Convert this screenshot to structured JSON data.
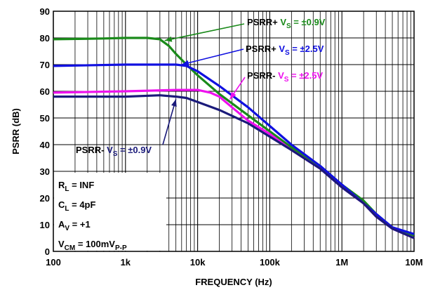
{
  "chart_data": {
    "type": "line",
    "xlabel": "FREQUENCY (Hz)",
    "ylabel": "PSRR (dB)",
    "x_scale": "log",
    "xlim": [
      100,
      10000000
    ],
    "ylim": [
      0,
      90
    ],
    "grid": true,
    "x_ticks": [
      {
        "value": 100,
        "label": "100"
      },
      {
        "value": 1000,
        "label": "1k"
      },
      {
        "value": 10000,
        "label": "10k"
      },
      {
        "value": 100000,
        "label": "100k"
      },
      {
        "value": 1000000,
        "label": "1M"
      },
      {
        "value": 10000000,
        "label": "10M"
      }
    ],
    "y_ticks": [
      0,
      10,
      20,
      30,
      40,
      50,
      60,
      70,
      80,
      90
    ],
    "series": [
      {
        "name": "PSRR+ VS = ±0.9V",
        "label": {
          "main": "PSRR+",
          "v": "V",
          "sub": "S",
          "value": "= ±0.9V"
        },
        "color": "#1a8a1a",
        "arrow_target": [
          3500,
          79
        ],
        "points": [
          [
            100,
            79.5
          ],
          [
            500,
            79.8
          ],
          [
            1000,
            80
          ],
          [
            2000,
            80
          ],
          [
            3000,
            79.5
          ],
          [
            4000,
            77
          ],
          [
            5000,
            74
          ],
          [
            7000,
            70
          ],
          [
            10000,
            66
          ],
          [
            20000,
            59
          ],
          [
            50000,
            51
          ],
          [
            100000,
            45
          ],
          [
            200000,
            39
          ],
          [
            500000,
            32
          ],
          [
            1000000,
            25
          ],
          [
            2000000,
            19
          ],
          [
            3000000,
            14
          ],
          [
            5000000,
            9
          ],
          [
            10000000,
            6
          ]
        ]
      },
      {
        "name": "PSRR+ VS = ±2.5V",
        "label": {
          "main": "PSRR+",
          "v": "V",
          "sub": "S",
          "value": "= ±2.5V"
        },
        "color": "#1010e0",
        "arrow_target": [
          6000,
          70
        ],
        "points": [
          [
            100,
            69.5
          ],
          [
            1000,
            70
          ],
          [
            3000,
            70
          ],
          [
            5000,
            70
          ],
          [
            7000,
            69.5
          ],
          [
            10000,
            67.5
          ],
          [
            20000,
            62
          ],
          [
            50000,
            54
          ],
          [
            100000,
            47
          ],
          [
            200000,
            40
          ],
          [
            500000,
            32
          ],
          [
            1000000,
            25
          ],
          [
            2000000,
            18
          ],
          [
            3000000,
            14
          ],
          [
            5000000,
            9
          ],
          [
            10000000,
            6.5
          ]
        ]
      },
      {
        "name": "PSRR- VS = ±2.5V",
        "label": {
          "main": "PSRR-",
          "v": "V",
          "sub": "S",
          "value": "= ±2.5V"
        },
        "color": "#ee10ee",
        "arrow_target": [
          28000,
          57
        ],
        "points": [
          [
            100,
            59.5
          ],
          [
            1000,
            60
          ],
          [
            5000,
            60.5
          ],
          [
            10000,
            60.5
          ],
          [
            15000,
            59.5
          ],
          [
            20000,
            58
          ],
          [
            30000,
            54
          ],
          [
            50000,
            49
          ],
          [
            100000,
            44
          ],
          [
            200000,
            38
          ],
          [
            500000,
            31
          ],
          [
            1000000,
            24
          ],
          [
            2000000,
            18
          ],
          [
            3000000,
            13
          ],
          [
            5000000,
            8.5
          ],
          [
            10000000,
            5
          ]
        ]
      },
      {
        "name": "PSRR- VS = ±0.9V",
        "label": {
          "main": "PSRR-",
          "v": "V",
          "sub": "S",
          "value": "= ±0.9V"
        },
        "color": "#1a1a7a",
        "arrow_target": [
          5000,
          57
        ],
        "points": [
          [
            100,
            58
          ],
          [
            1000,
            58
          ],
          [
            3000,
            58.5
          ],
          [
            5000,
            58
          ],
          [
            7000,
            57.5
          ],
          [
            10000,
            56
          ],
          [
            20000,
            53
          ],
          [
            50000,
            48
          ],
          [
            100000,
            43
          ],
          [
            200000,
            38
          ],
          [
            500000,
            31
          ],
          [
            1000000,
            24
          ],
          [
            2000000,
            18
          ],
          [
            3000000,
            13
          ],
          [
            5000000,
            8.5
          ],
          [
            10000000,
            5
          ]
        ]
      }
    ],
    "conditions": [
      {
        "main": "R",
        "sub": "L",
        "rest": " = INF"
      },
      {
        "main": "C",
        "sub": "L",
        "rest": " = 4pF"
      },
      {
        "main": "A",
        "sub": "V",
        "rest": " = +1"
      },
      {
        "main": "V",
        "sub": "CM",
        "rest": " = 100mV",
        "sub2": "P-P"
      }
    ]
  }
}
